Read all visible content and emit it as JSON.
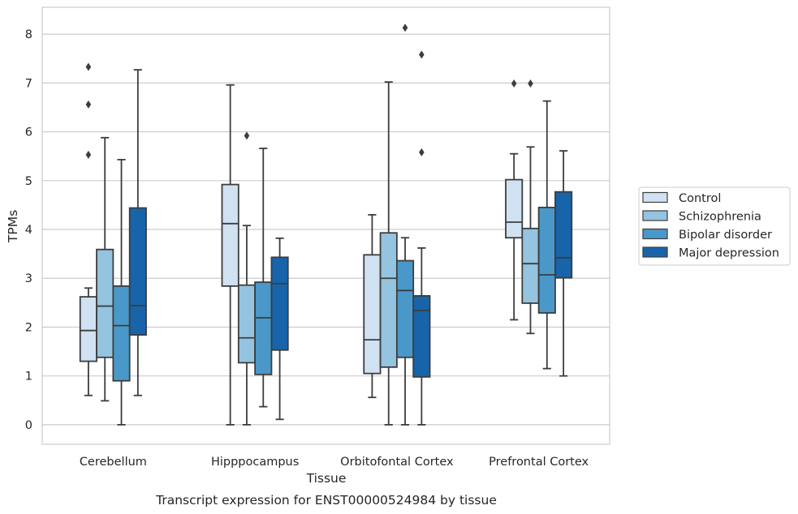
{
  "chart_data": {
    "type": "box",
    "caption": "Transcript expression for ENST00000524984 by tissue",
    "xlabel": "Tissue",
    "ylabel": "TPMs",
    "ylim": [
      -0.4,
      8.55
    ],
    "yticks": [
      0,
      1,
      2,
      3,
      4,
      5,
      6,
      7,
      8
    ],
    "grid": true,
    "legend_position": "right",
    "categories": [
      "Cerebellum",
      "Hipppocampus",
      "Orbitofontal Cortex",
      "Prefrontal Cortex"
    ],
    "colors": [
      "#d0e1f2",
      "#94c4df",
      "#4a98c9",
      "#1764ab"
    ],
    "series": [
      {
        "name": "Control",
        "boxes": [
          {
            "whisker_low": 0.6,
            "q1": 1.3,
            "median": 1.93,
            "q3": 2.62,
            "whisker_high": 2.8,
            "outliers": [
              5.53,
              6.56,
              7.33
            ]
          },
          {
            "whisker_low": 0.0,
            "q1": 2.84,
            "median": 4.12,
            "q3": 4.92,
            "whisker_high": 6.96,
            "outliers": []
          },
          {
            "whisker_low": 0.56,
            "q1": 1.05,
            "median": 1.74,
            "q3": 3.48,
            "whisker_high": 4.3,
            "outliers": []
          },
          {
            "whisker_low": 2.15,
            "q1": 3.83,
            "median": 4.15,
            "q3": 5.02,
            "whisker_high": 5.55,
            "outliers": [
              6.99
            ]
          }
        ]
      },
      {
        "name": "Schizophrenia",
        "boxes": [
          {
            "whisker_low": 0.49,
            "q1": 1.38,
            "median": 2.43,
            "q3": 3.59,
            "whisker_high": 5.88,
            "outliers": []
          },
          {
            "whisker_low": 0.0,
            "q1": 1.27,
            "median": 1.78,
            "q3": 2.86,
            "whisker_high": 4.08,
            "outliers": [
              5.92
            ]
          },
          {
            "whisker_low": 0.0,
            "q1": 1.18,
            "median": 3.0,
            "q3": 3.93,
            "whisker_high": 7.02,
            "outliers": []
          },
          {
            "whisker_low": 1.87,
            "q1": 2.49,
            "median": 3.3,
            "q3": 4.02,
            "whisker_high": 5.69,
            "outliers": [
              6.99
            ]
          }
        ]
      },
      {
        "name": "Bipolar disorder",
        "boxes": [
          {
            "whisker_low": 0.0,
            "q1": 0.9,
            "median": 2.03,
            "q3": 2.84,
            "whisker_high": 5.43,
            "outliers": []
          },
          {
            "whisker_low": 0.37,
            "q1": 1.03,
            "median": 2.19,
            "q3": 2.92,
            "whisker_high": 5.66,
            "outliers": []
          },
          {
            "whisker_low": 0.0,
            "q1": 1.38,
            "median": 2.75,
            "q3": 3.36,
            "whisker_high": 3.83,
            "outliers": [
              8.13
            ]
          },
          {
            "whisker_low": 1.15,
            "q1": 2.29,
            "median": 3.07,
            "q3": 4.45,
            "whisker_high": 6.63,
            "outliers": []
          }
        ]
      },
      {
        "name": "Major depression",
        "boxes": [
          {
            "whisker_low": 0.6,
            "q1": 1.84,
            "median": 2.44,
            "q3": 4.44,
            "whisker_high": 7.27,
            "outliers": []
          },
          {
            "whisker_low": 0.11,
            "q1": 1.53,
            "median": 2.89,
            "q3": 3.43,
            "whisker_high": 3.82,
            "outliers": []
          },
          {
            "whisker_low": 0.0,
            "q1": 0.98,
            "median": 2.34,
            "q3": 2.64,
            "whisker_high": 3.62,
            "outliers": [
              5.58,
              7.58
            ]
          },
          {
            "whisker_low": 1.0,
            "q1": 3.01,
            "median": 3.42,
            "q3": 4.77,
            "whisker_high": 5.61,
            "outliers": []
          }
        ]
      }
    ]
  }
}
